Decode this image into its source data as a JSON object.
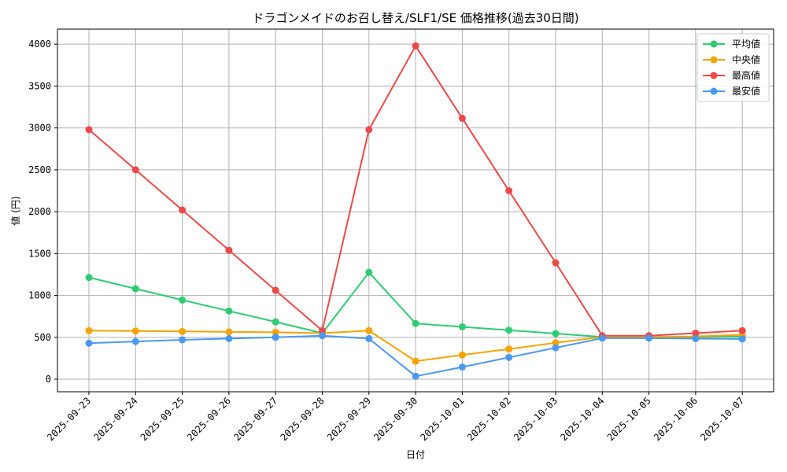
{
  "chart_data": {
    "type": "line",
    "title": "ドラゴンメイドのお召し替え/SLF1/SE 価格推移(過去30日間)",
    "xlabel": "日付",
    "ylabel": "値 (円)",
    "ylim": [
      -150,
      4180
    ],
    "yticks": [
      0,
      500,
      1000,
      1500,
      2000,
      2500,
      3000,
      3500,
      4000
    ],
    "grid": true,
    "legend_position": "top-right",
    "categories": [
      "2025-09-23",
      "2025-09-24",
      "2025-09-25",
      "2025-09-26",
      "2025-09-27",
      "2025-09-28",
      "2025-09-29",
      "2025-09-30",
      "2025-10-01",
      "2025-10-02",
      "2025-10-03",
      "2025-10-04",
      "2025-10-05",
      "2025-10-06",
      "2025-10-07"
    ],
    "series": [
      {
        "name": "平均値",
        "color": "#2ecc71",
        "values": [
          1215,
          1080,
          945,
          815,
          685,
          550,
          1275,
          665,
          625,
          585,
          545,
          505,
          500,
          505,
          510
        ]
      },
      {
        "name": "中央値",
        "color": "#f5a300",
        "values": [
          580,
          575,
          570,
          565,
          560,
          550,
          580,
          215,
          290,
          360,
          435,
          505,
          505,
          510,
          530
        ]
      },
      {
        "name": "最高値",
        "color": "#f04848",
        "values": [
          2980,
          2500,
          2020,
          1540,
          1060,
          580,
          2980,
          3980,
          3115,
          2250,
          1390,
          520,
          520,
          550,
          580
        ]
      },
      {
        "name": "最安値",
        "color": "#4a98f0",
        "values": [
          430,
          450,
          470,
          485,
          500,
          520,
          485,
          35,
          145,
          260,
          375,
          490,
          490,
          485,
          480
        ]
      }
    ]
  }
}
